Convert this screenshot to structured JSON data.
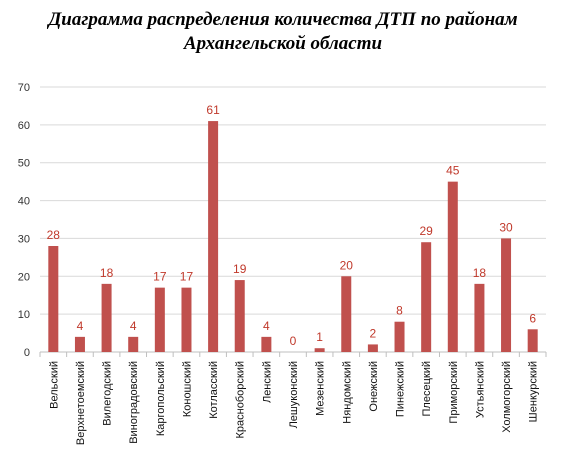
{
  "title_line1": "Диаграмма распределения количества ДТП по районам",
  "title_line2": "Архангельской области",
  "chart_data": {
    "type": "bar",
    "title": "Диаграмма распределения количества ДТП по районам Архангельской области",
    "xlabel": "",
    "ylabel": "",
    "ylim": [
      0,
      70
    ],
    "yticks": [
      0,
      10,
      20,
      30,
      40,
      50,
      60,
      70
    ],
    "grid": true,
    "legend": "none",
    "bar_color": "#c0504d",
    "label_color": "#c0392b",
    "categories": [
      "Вельский",
      "Верхнетоемский",
      "Вилегодский",
      "Виноградовский",
      "Каргопольский",
      "Коношский",
      "Котласский",
      "Красноборский",
      "Ленский",
      "Лешуконский",
      "Мезенский",
      "Няндомский",
      "Онежский",
      "Пинежский",
      "Плесецкий",
      "Приморский",
      "Устьянский",
      "Холмогорский",
      "Шенкурский"
    ],
    "values": [
      28,
      4,
      18,
      4,
      17,
      17,
      61,
      19,
      4,
      0,
      1,
      20,
      2,
      8,
      29,
      45,
      18,
      30,
      6
    ]
  }
}
